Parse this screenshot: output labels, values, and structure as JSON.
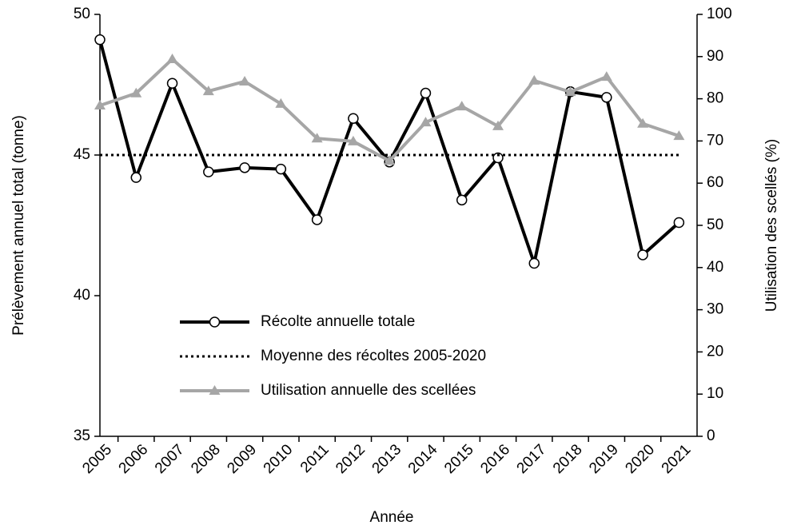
{
  "chart_data": {
    "type": "line",
    "x_label": "Année",
    "y_label": "Prélèvement annuel total (tonne)",
    "y2_label": "Utilisation des scellés (%)",
    "categories": [
      "2005",
      "2006",
      "2007",
      "2008",
      "2009",
      "2010",
      "2011",
      "2012",
      "2013",
      "2014",
      "2015",
      "2016",
      "2017",
      "2018",
      "2019",
      "2020",
      "2021"
    ],
    "series": [
      {
        "name": "Récolte annuelle totale",
        "color": "#000000",
        "style": "solid",
        "marker": "circle",
        "values": [
          49.1,
          44.2,
          47.55,
          44.4,
          44.55,
          44.5,
          42.7,
          46.3,
          44.75,
          47.2,
          43.4,
          44.9,
          41.15,
          47.25,
          47.05,
          41.45,
          42.6
        ]
      },
      {
        "name": "Moyenne des récoltes 2005-2020",
        "color": "#000000",
        "style": "dotted",
        "marker": "none",
        "values": [
          45,
          45,
          45,
          45,
          45,
          45,
          45,
          45,
          45,
          45,
          45,
          45,
          45,
          45,
          45,
          45,
          45
        ]
      },
      {
        "name": "Utilisation annuelle des scellées",
        "color": "#a6a6a6",
        "style": "solid",
        "marker": "triangle",
        "axis": "y2",
        "values": [
          78.4,
          81.3,
          89.4,
          81.8,
          84.1,
          78.8,
          70.6,
          69.9,
          65.3,
          74.4,
          78.2,
          73.5,
          84.3,
          81.6,
          85.2,
          74.1,
          71.2
        ]
      }
    ],
    "ylim": [
      35,
      50
    ],
    "yticks": [
      35,
      40,
      45,
      50
    ],
    "y2lim": [
      0,
      100
    ],
    "y2ticks": [
      0,
      10,
      20,
      30,
      40,
      50,
      60,
      70,
      80,
      90,
      100
    ],
    "grid": false
  }
}
